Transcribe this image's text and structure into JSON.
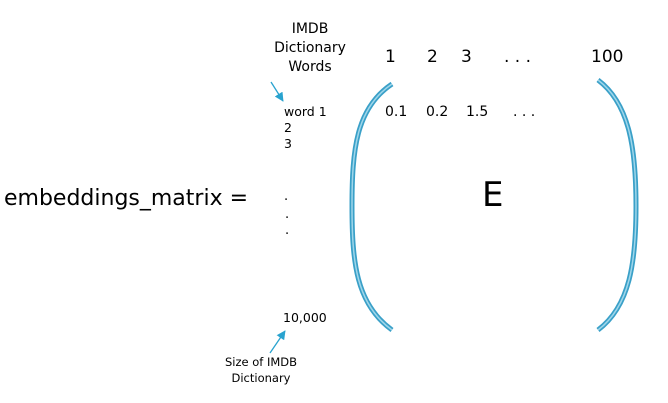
{
  "labels": {
    "dictionary_words": [
      "IMDB",
      "Dictionary",
      "Words"
    ],
    "dictionary_size": [
      "Size of IMDB",
      "Dictionary"
    ]
  },
  "columns": [
    "1",
    "2",
    "3",
    ". . .",
    "100"
  ],
  "first_row_values": [
    "0.1",
    "0.2",
    "1.5",
    ". . ."
  ],
  "rows": {
    "first": "word 1",
    "second": "2",
    "third": "3",
    "ellipsis": [
      ".",
      ".",
      "."
    ],
    "last": "10,000"
  },
  "equation": "embeddings_matrix =",
  "matrix_name": "E",
  "colors": {
    "bracket": "#3aa0c8",
    "bracket_highlight": "#9fd6ea",
    "arrow": "#29a3cf",
    "text": "#000000"
  }
}
